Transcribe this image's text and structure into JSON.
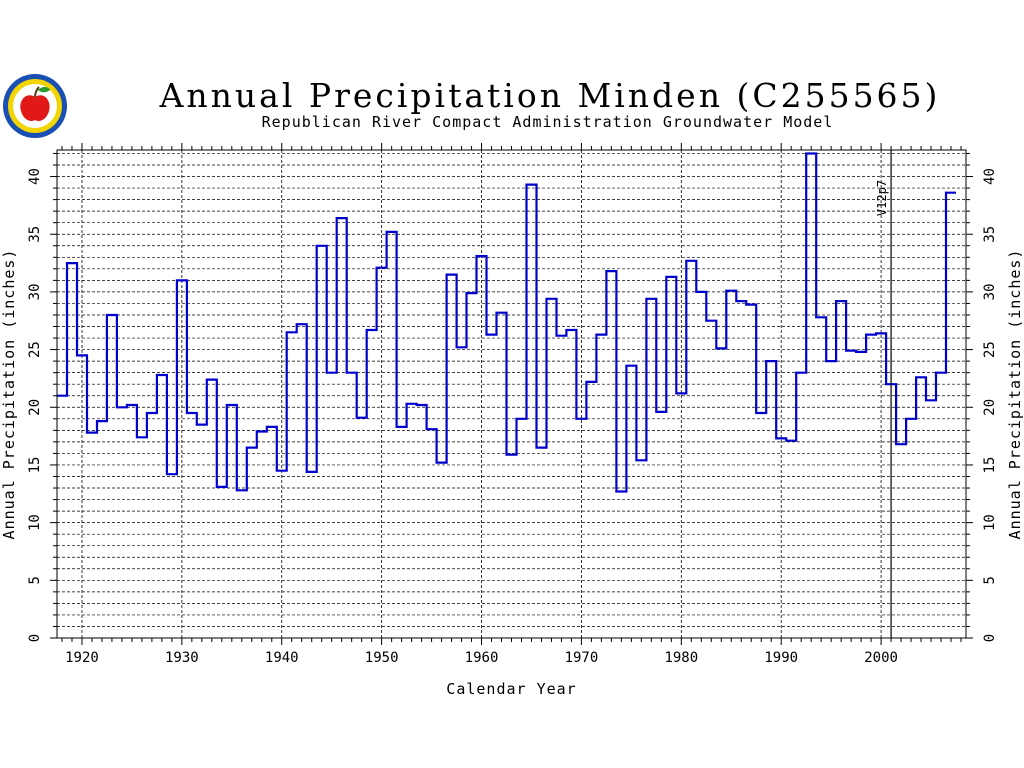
{
  "header": {
    "title": "Annual Precipitation Minden (C255565)",
    "subtitle": "Republican River Compact Administration Groundwater Model"
  },
  "logo": {
    "icon": "apple-seal-logo"
  },
  "colors": {
    "series": "#0000cc",
    "grid": "#000000",
    "axis": "#000000"
  },
  "chart_data": {
    "type": "line",
    "style": "step",
    "title": "Annual Precipitation Minden (C255565)",
    "subtitle": "Republican River Compact Administration Groundwater Model",
    "xlabel": "Calendar Year",
    "ylabel": "Annual Precipitation (inches)",
    "ylabel_right": "Annual Precipitation (inches)",
    "xlim": [
      1917.5,
      2008.5
    ],
    "ylim": [
      0,
      42.3
    ],
    "xticks": [
      1920,
      1930,
      1940,
      1950,
      1960,
      1970,
      1980,
      1990,
      2000
    ],
    "yticks": [
      0,
      5,
      10,
      15,
      20,
      25,
      30,
      35,
      40
    ],
    "grid": true,
    "annotation": {
      "x": 2001,
      "text": "V12p7"
    },
    "series": [
      {
        "x": [
          1918,
          1919,
          1920,
          1921,
          1922,
          1923,
          1924,
          1925,
          1926,
          1927,
          1928,
          1929,
          1930,
          1931,
          1932,
          1933,
          1934,
          1935,
          1936,
          1937,
          1938,
          1939,
          1940,
          1941,
          1942,
          1943,
          1944,
          1945,
          1946,
          1947,
          1948,
          1949,
          1950,
          1951,
          1952,
          1953,
          1954,
          1955,
          1956,
          1957,
          1958,
          1959,
          1960,
          1961,
          1962,
          1963,
          1964,
          1965,
          1966,
          1967,
          1968,
          1969,
          1970,
          1971,
          1972,
          1973,
          1974,
          1975,
          1976,
          1977,
          1978,
          1979,
          1980,
          1981,
          1982,
          1983,
          1984,
          1985,
          1986,
          1987,
          1988,
          1989,
          1990,
          1991,
          1992,
          1993,
          1994,
          1995,
          1996,
          1997,
          1998,
          1999,
          2000,
          2001,
          2002,
          2003,
          2004,
          2005,
          2006,
          2007
        ],
        "values": [
          21.0,
          32.5,
          24.5,
          17.8,
          18.8,
          28.0,
          20.0,
          20.2,
          17.4,
          19.5,
          22.8,
          14.2,
          31.0,
          19.5,
          18.5,
          22.4,
          13.1,
          20.2,
          12.8,
          16.5,
          17.9,
          18.3,
          14.5,
          26.5,
          27.2,
          14.4,
          34.0,
          23.0,
          36.4,
          23.0,
          19.1,
          26.7,
          32.1,
          35.2,
          18.3,
          20.3,
          20.2,
          18.1,
          15.2,
          31.5,
          25.2,
          29.9,
          33.1,
          26.3,
          28.2,
          15.9,
          19.0,
          39.3,
          16.5,
          29.4,
          26.2,
          26.7,
          19.0,
          22.2,
          26.3,
          31.8,
          12.7,
          23.6,
          15.4,
          29.4,
          19.6,
          31.3,
          21.2,
          32.7,
          30.0,
          27.5,
          25.1,
          30.1,
          29.2,
          28.9,
          19.5,
          24.0,
          17.3,
          17.1,
          23.0,
          42.0,
          27.8,
          24.0,
          29.2,
          24.9,
          24.8,
          26.3,
          26.4,
          22.0,
          16.8,
          19.0,
          22.6,
          20.6,
          23.0,
          38.6
        ]
      }
    ]
  }
}
